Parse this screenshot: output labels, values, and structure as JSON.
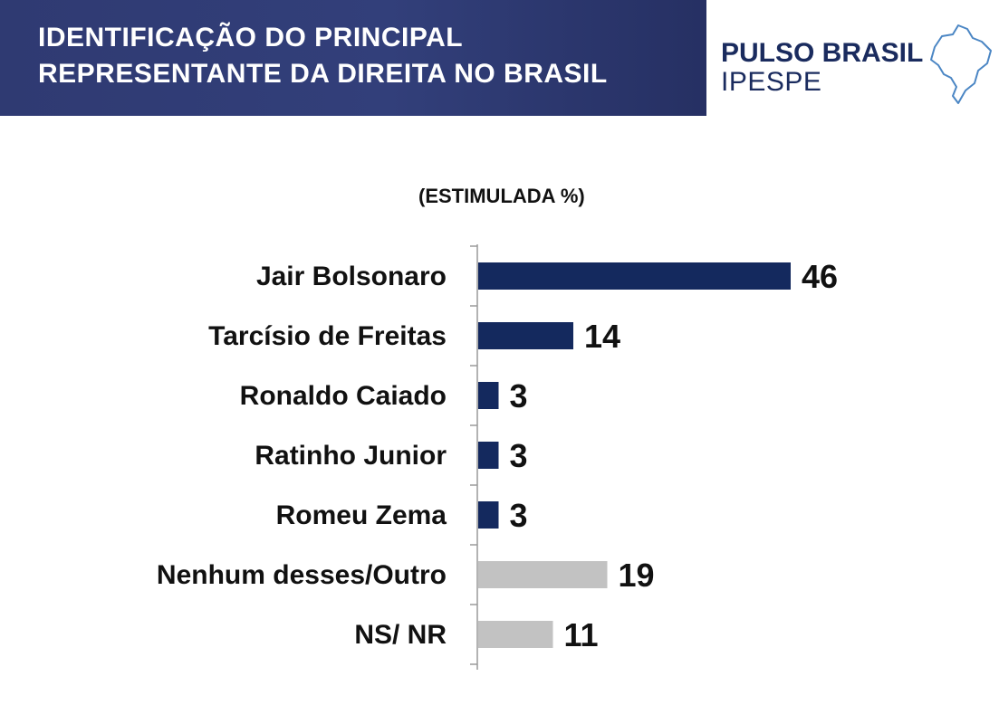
{
  "header": {
    "title_line1": "IDENTIFICAÇÃO DO PRINCIPAL",
    "title_line2": "REPRESENTANTE DA DIREITA NO BRASIL"
  },
  "logo": {
    "name": "PULSO BRASIL",
    "sub": "IPESPE",
    "icon": "brazil-map-icon"
  },
  "colors": {
    "header_bg": "#2f3a72",
    "bar_primary": "#14295e",
    "bar_secondary": "#c2c2c2",
    "text": "#111111"
  },
  "chart_data": {
    "type": "bar",
    "orientation": "horizontal",
    "subtitle": "(ESTIMULADA %)",
    "categories": [
      "Jair Bolsonaro",
      "Tarcísio de Freitas",
      "Ronaldo Caiado",
      "Ratinho Junior",
      "Romeu Zema",
      "Nenhum desses/Outro",
      "NS/ NR"
    ],
    "values": [
      46,
      14,
      3,
      3,
      3,
      19,
      11
    ],
    "value_labels": [
      "46",
      "14",
      "3",
      "3",
      "3",
      "19",
      "11"
    ],
    "bar_color_groups": [
      "primary",
      "primary",
      "primary",
      "primary",
      "primary",
      "secondary",
      "secondary"
    ],
    "xlim": [
      0,
      46
    ],
    "grid": false,
    "legend": "none"
  }
}
